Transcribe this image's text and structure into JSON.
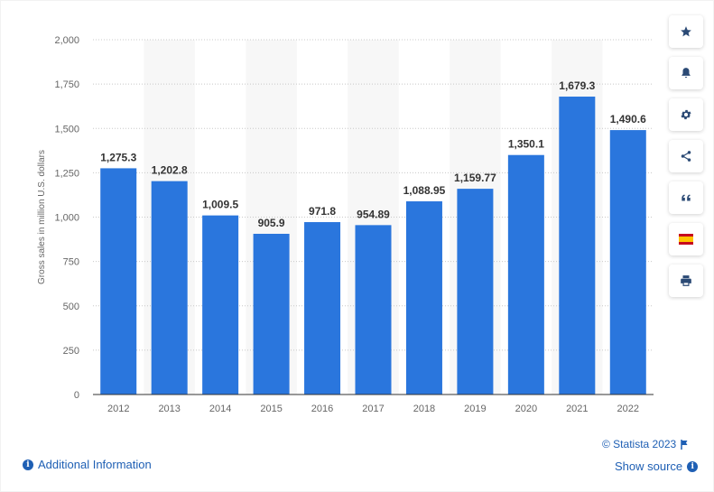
{
  "chart_data": {
    "type": "bar",
    "categories": [
      "2012",
      "2013",
      "2014",
      "2015",
      "2016",
      "2017",
      "2018",
      "2019",
      "2020",
      "2021",
      "2022"
    ],
    "values": [
      1275.3,
      1202.8,
      1009.5,
      905.9,
      971.8,
      954.89,
      1088.95,
      1159.77,
      1350.1,
      1679.3,
      1490.6
    ],
    "value_labels": [
      "1,275.3",
      "1,202.8",
      "1,009.5",
      "905.9",
      "971.8",
      "954.89",
      "1,088.95",
      "1,159.77",
      "1,350.1",
      "1,679.3",
      "1,490.6"
    ],
    "yticks": [
      0,
      250,
      500,
      750,
      1000,
      1250,
      1500,
      1750,
      2000
    ],
    "ytick_labels": [
      "0",
      "250",
      "500",
      "750",
      "1,000",
      "1,250",
      "1,500",
      "1,750",
      "2,000"
    ],
    "ylim": [
      0,
      2000
    ],
    "ylabel": "Gross sales in million U.S. dollars",
    "xlabel": "",
    "grid": true,
    "bar_color": "#2a76dd",
    "alt_band_color": "#f7f7f7"
  },
  "sidebar": {
    "buttons": [
      {
        "icon": "star-icon"
      },
      {
        "icon": "bell-icon"
      },
      {
        "icon": "gear-icon"
      },
      {
        "icon": "share-icon"
      },
      {
        "icon": "quote-icon"
      },
      {
        "icon": "spain-flag-icon"
      },
      {
        "icon": "print-icon"
      }
    ]
  },
  "footer": {
    "additional_info": "Additional Information",
    "copyright": "© Statista 2023",
    "show_source": "Show source"
  },
  "colors": {
    "link": "#1e5fb4",
    "axis_text": "#666666",
    "label_text": "#333333"
  }
}
